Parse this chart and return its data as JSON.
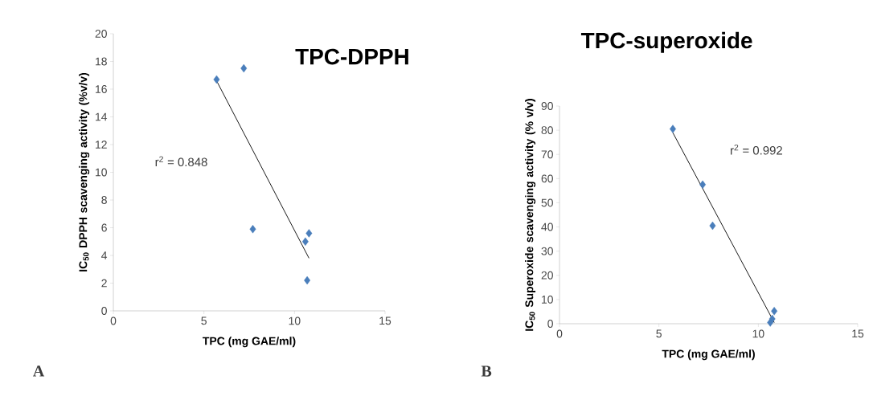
{
  "chart_data": [
    {
      "type": "scatter",
      "title": "TPC-DPPH",
      "xlabel": "TPC (mg GAE/ml)",
      "ylabel": "IC$_{50}$ DPPH scavenging activity (%v/v)",
      "annotations": [
        "r$^{2}$ = 0.848",
        "A"
      ],
      "xlim": [
        0,
        15
      ],
      "xticks": [
        0,
        5,
        10,
        15
      ],
      "ylim": [
        0,
        20
      ],
      "yticks": [
        0,
        2,
        4,
        6,
        8,
        10,
        12,
        14,
        16,
        18,
        20
      ],
      "series": [
        {
          "type": "scatter",
          "marker": "diamond",
          "color": "#4a7ebb",
          "x": [
            5.7,
            7.2,
            7.7,
            10.6,
            10.8,
            10.7
          ],
          "values": [
            16.7,
            17.5,
            5.9,
            5.0,
            5.6,
            2.2
          ]
        },
        {
          "type": "line",
          "marker": "none",
          "color": "#000000",
          "x": [
            5.7,
            10.8
          ],
          "values": [
            16.6,
            3.8
          ]
        }
      ]
    },
    {
      "type": "scatter",
      "title": "TPC-superoxide",
      "xlabel": "TPC (mg GAE/ml)",
      "ylabel": "IC$_{50}$ Superoxide scavenging activity (% v/v)",
      "annotations": [
        "r$^{2}$ = 0.992",
        "B"
      ],
      "xlim": [
        0,
        15
      ],
      "xticks": [
        0,
        5,
        10,
        15
      ],
      "ylim": [
        0,
        90
      ],
      "yticks": [
        0,
        10,
        20,
        30,
        40,
        50,
        60,
        70,
        80,
        90
      ],
      "series": [
        {
          "type": "scatter",
          "marker": "diamond",
          "color": "#4a7ebb",
          "x": [
            5.7,
            7.2,
            7.7,
            10.6,
            10.7,
            10.8
          ],
          "values": [
            80.5,
            57.5,
            40.5,
            0.5,
            2.0,
            5.2
          ]
        },
        {
          "type": "line",
          "marker": "none",
          "color": "#000000",
          "x": [
            5.7,
            10.8
          ],
          "values": [
            79.0,
            0.5
          ]
        }
      ]
    }
  ]
}
